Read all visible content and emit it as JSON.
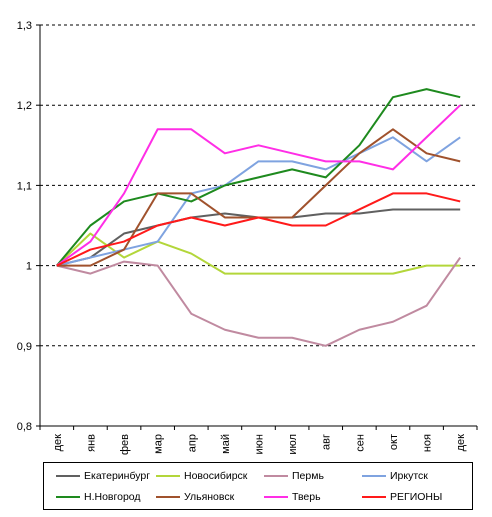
{
  "chart_data": {
    "type": "line",
    "title": "",
    "xlabel": "",
    "ylabel": "",
    "categories": [
      "дек",
      "янв",
      "фев",
      "мар",
      "апр",
      "май",
      "июн",
      "июл",
      "авг",
      "сен",
      "окт",
      "ноя",
      "дек"
    ],
    "ylim": [
      0.8,
      1.3
    ],
    "yticks": [
      "0,8",
      "0,9",
      "1",
      "1,1",
      "1,2",
      "1,3"
    ],
    "ytick_values": [
      0.8,
      0.9,
      1.0,
      1.1,
      1.2,
      1.3
    ],
    "grid": true,
    "legend_position": "bottom",
    "series": [
      {
        "name": "Екатеринбург",
        "color": "#606060",
        "values": [
          1.0,
          1.01,
          1.04,
          1.05,
          1.06,
          1.065,
          1.06,
          1.06,
          1.065,
          1.065,
          1.07,
          1.07,
          1.07
        ]
      },
      {
        "name": "Новосибирск",
        "color": "#b3d63a",
        "values": [
          1.0,
          1.04,
          1.01,
          1.03,
          1.015,
          0.99,
          0.99,
          0.99,
          0.99,
          0.99,
          0.99,
          1.0,
          1.0
        ]
      },
      {
        "name": "Пермь",
        "color": "#c08aa0",
        "values": [
          1.0,
          0.99,
          1.005,
          1.0,
          0.94,
          0.92,
          0.91,
          0.91,
          0.9,
          0.92,
          0.93,
          0.95,
          1.01
        ]
      },
      {
        "name": "Иркутск",
        "color": "#7fa3e0",
        "values": [
          1.0,
          1.01,
          1.02,
          1.03,
          1.09,
          1.1,
          1.13,
          1.13,
          1.12,
          1.14,
          1.16,
          1.13,
          1.16
        ]
      },
      {
        "name": "Н.Новгород",
        "color": "#1e8a1e",
        "values": [
          1.0,
          1.05,
          1.08,
          1.09,
          1.08,
          1.1,
          1.11,
          1.12,
          1.11,
          1.15,
          1.21,
          1.22,
          1.21
        ]
      },
      {
        "name": "Ульяновск",
        "color": "#a0522d",
        "values": [
          1.0,
          1.0,
          1.02,
          1.09,
          1.09,
          1.06,
          1.06,
          1.06,
          1.1,
          1.14,
          1.17,
          1.14,
          1.13
        ]
      },
      {
        "name": "Тверь",
        "color": "#ff2ee6",
        "values": [
          1.0,
          1.03,
          1.09,
          1.17,
          1.17,
          1.14,
          1.15,
          1.14,
          1.13,
          1.13,
          1.12,
          1.16,
          1.2
        ]
      },
      {
        "name": "РЕГИОНЫ",
        "color": "#ff1a1a",
        "values": [
          1.0,
          1.02,
          1.03,
          1.05,
          1.06,
          1.05,
          1.06,
          1.05,
          1.05,
          1.07,
          1.09,
          1.09,
          1.08
        ]
      }
    ]
  }
}
